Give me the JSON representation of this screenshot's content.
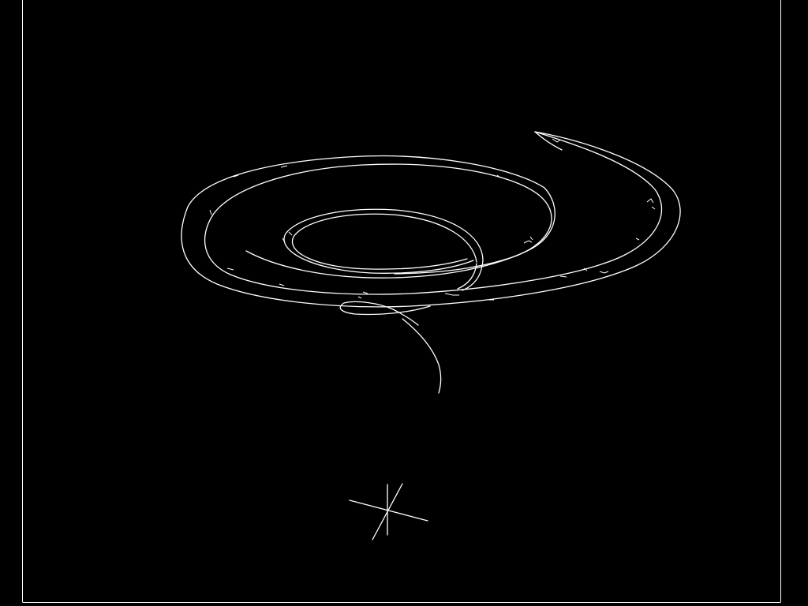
{
  "scene": {
    "description_label": "",
    "background_color": "#000000",
    "line_color": "#ffffff",
    "subject_icon": "spiral-ribbon-icon",
    "marker_icon": "crosshair-icon"
  }
}
